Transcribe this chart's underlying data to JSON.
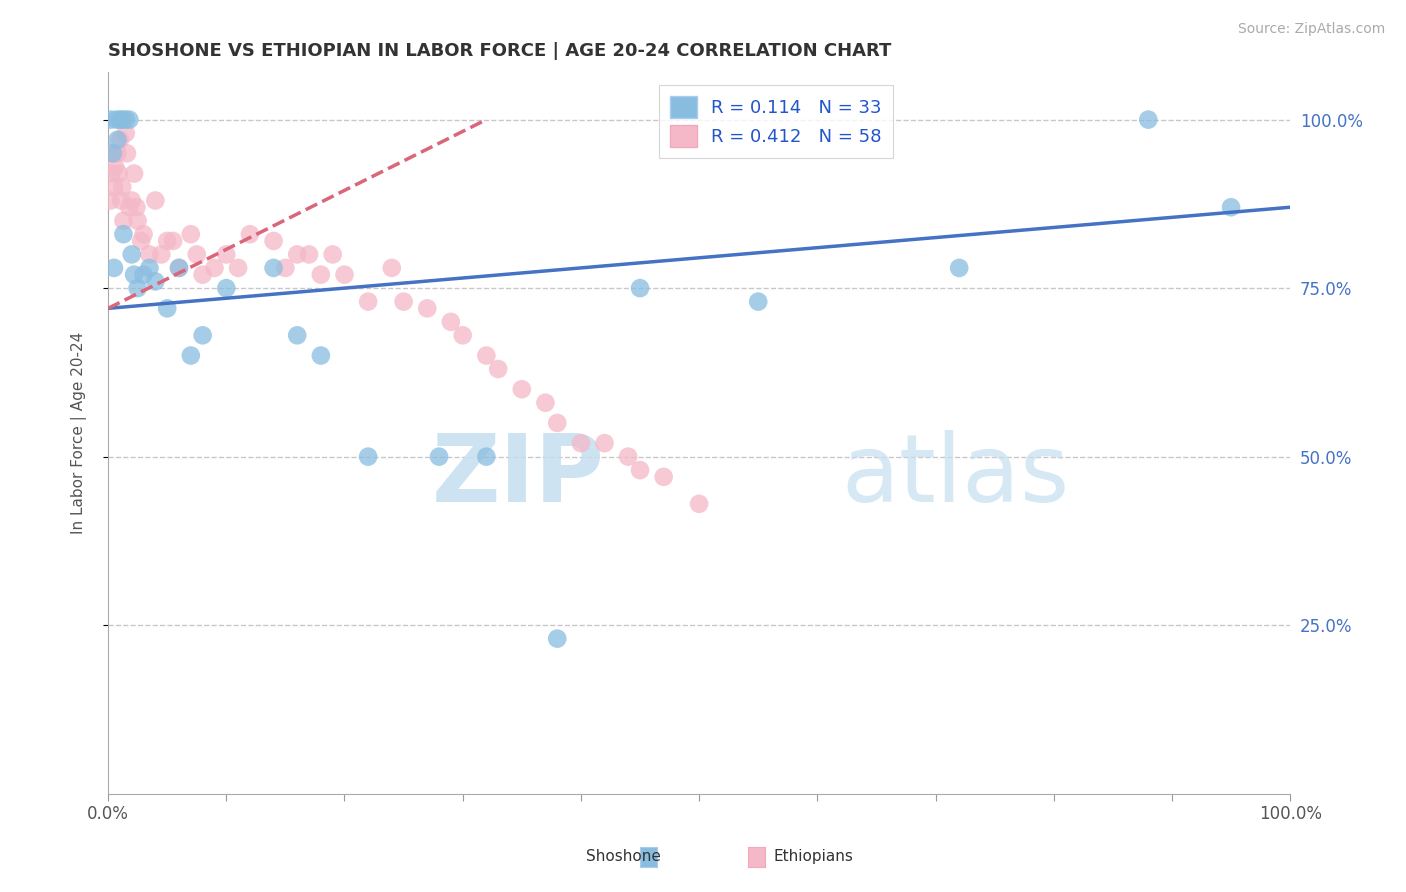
{
  "title": "SHOSHONE VS ETHIOPIAN IN LABOR FORCE | AGE 20-24 CORRELATION CHART",
  "source": "Source: ZipAtlas.com",
  "ylabel_label": "In Labor Force | Age 20-24",
  "r_shoshone": 0.114,
  "n_shoshone": 33,
  "r_ethiopian": 0.412,
  "n_ethiopian": 58,
  "color_shoshone": "#89bde0",
  "color_ethiopian": "#f4b8c8",
  "trendline_shoshone": "#4472c4",
  "trendline_ethiopian": "#d9667a",
  "sho_x": [
    0.2,
    0.4,
    0.5,
    0.7,
    0.8,
    1.0,
    1.2,
    1.3,
    1.5,
    1.8,
    2.0,
    2.2,
    2.5,
    3.0,
    3.5,
    4.0,
    5.0,
    6.0,
    7.0,
    8.0,
    10.0,
    14.0,
    16.0,
    18.0,
    22.0,
    28.0,
    32.0,
    38.0,
    45.0,
    55.0,
    72.0,
    88.0,
    95.0
  ],
  "sho_y": [
    100.0,
    95.0,
    78.0,
    100.0,
    97.0,
    100.0,
    100.0,
    83.0,
    100.0,
    100.0,
    80.0,
    77.0,
    75.0,
    77.0,
    78.0,
    76.0,
    72.0,
    78.0,
    65.0,
    68.0,
    75.0,
    78.0,
    68.0,
    65.0,
    50.0,
    50.0,
    50.0,
    23.0,
    75.0,
    73.0,
    78.0,
    100.0,
    87.0
  ],
  "eth_x": [
    0.2,
    0.3,
    0.4,
    0.5,
    0.6,
    0.7,
    0.8,
    0.9,
    1.0,
    1.1,
    1.2,
    1.3,
    1.5,
    1.6,
    1.8,
    2.0,
    2.2,
    2.4,
    2.5,
    2.8,
    3.0,
    3.5,
    4.0,
    4.5,
    5.0,
    5.5,
    6.0,
    7.0,
    7.5,
    8.0,
    9.0,
    10.0,
    11.0,
    12.0,
    14.0,
    15.0,
    16.0,
    17.0,
    18.0,
    19.0,
    20.0,
    22.0,
    24.0,
    25.0,
    27.0,
    29.0,
    30.0,
    32.0,
    33.0,
    35.0,
    37.0,
    38.0,
    40.0,
    42.0,
    44.0,
    45.0,
    47.0,
    50.0
  ],
  "eth_y": [
    88.0,
    92.0,
    95.0,
    90.0,
    93.0,
    95.0,
    95.0,
    92.0,
    97.0,
    88.0,
    90.0,
    85.0,
    98.0,
    95.0,
    87.0,
    88.0,
    92.0,
    87.0,
    85.0,
    82.0,
    83.0,
    80.0,
    88.0,
    80.0,
    82.0,
    82.0,
    78.0,
    83.0,
    80.0,
    77.0,
    78.0,
    80.0,
    78.0,
    83.0,
    82.0,
    78.0,
    80.0,
    80.0,
    77.0,
    80.0,
    77.0,
    73.0,
    78.0,
    73.0,
    72.0,
    70.0,
    68.0,
    65.0,
    63.0,
    60.0,
    58.0,
    55.0,
    52.0,
    52.0,
    50.0,
    48.0,
    47.0,
    43.0
  ],
  "xlim": [
    0,
    100
  ],
  "ylim": [
    0,
    107
  ],
  "yticks": [
    25,
    50,
    75,
    100
  ],
  "ytick_labels": [
    "25.0%",
    "50.0%",
    "75.0%",
    "100.0%"
  ],
  "xtick_positions": [
    0,
    10,
    20,
    30,
    40,
    50,
    60,
    70,
    80,
    90,
    100
  ],
  "xtick_labels_map": {
    "0": "0.0%",
    "100": "100.0%"
  },
  "watermark_zip": "ZIP",
  "watermark_atlas": "atlas",
  "background_color": "#ffffff",
  "grid_color": "#c8c8c8",
  "title_color": "#333333",
  "axis_label_color": "#555555",
  "right_ytick_color": "#4472c4",
  "trendline_sho_x0": 0,
  "trendline_sho_y0": 72.0,
  "trendline_sho_x1": 100,
  "trendline_sho_y1": 87.0,
  "trendline_eth_x0": 0,
  "trendline_eth_y0": 72.0,
  "trendline_eth_x1": 32,
  "trendline_eth_y1": 100.0
}
